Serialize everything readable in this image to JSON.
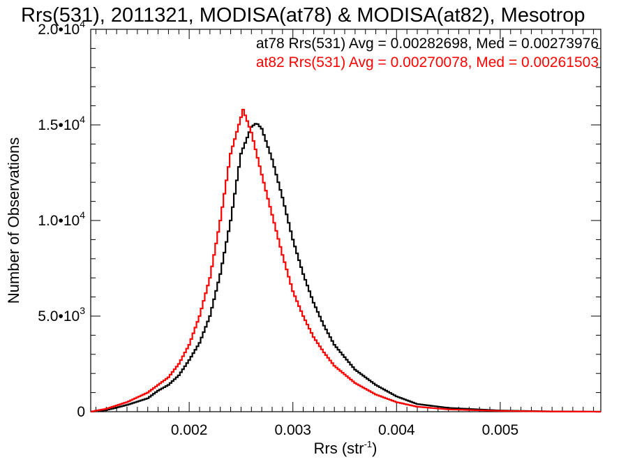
{
  "chart_data": {
    "type": "line",
    "title": "Rrs(531), 2011321, MODISA(at78) & MODISA(at82), Mesotrop",
    "xlabel": "Rrs (str",
    "xlabel_sup": "-1",
    "xlabel_end": ")",
    "ylabel": "Number of Observations",
    "xlim": [
      0.00105,
      0.00597
    ],
    "ylim": [
      0,
      20000
    ],
    "x_ticks": [
      {
        "value": 0.002,
        "label": "0.002"
      },
      {
        "value": 0.003,
        "label": "0.003"
      },
      {
        "value": 0.004,
        "label": "0.004"
      },
      {
        "value": 0.005,
        "label": "0.005"
      }
    ],
    "y_ticks": [
      {
        "value": 0,
        "label": "0",
        "sup": ""
      },
      {
        "value": 5000,
        "label": "5.0•10",
        "sup": "3"
      },
      {
        "value": 10000,
        "label": "1.0•10",
        "sup": "4"
      },
      {
        "value": 15000,
        "label": "1.5•10",
        "sup": "4"
      },
      {
        "value": 20000,
        "label": "2.0•10",
        "sup": "4"
      }
    ],
    "grid": false,
    "legend_position": "top-right",
    "series": [
      {
        "name": "at78",
        "color": "#000000",
        "legend": "at78 Rrs(531) Avg = 0.00282698, Med = 0.00273976",
        "x": [
          0.00105,
          0.0012,
          0.0014,
          0.0016,
          0.0017,
          0.0018,
          0.0019,
          0.002,
          0.0021,
          0.0022,
          0.0023,
          0.0024,
          0.0025,
          0.0026,
          0.00265,
          0.0027,
          0.0028,
          0.0029,
          0.003,
          0.0031,
          0.0032,
          0.0033,
          0.0034,
          0.0036,
          0.0038,
          0.004,
          0.0042,
          0.0045,
          0.005,
          0.0055,
          0.00597
        ],
        "y": [
          0,
          80,
          350,
          700,
          1100,
          1400,
          1900,
          2700,
          3600,
          5000,
          7200,
          10000,
          13500,
          14900,
          15100,
          14800,
          13200,
          11200,
          9000,
          7200,
          5700,
          4500,
          3500,
          2200,
          1400,
          800,
          400,
          200,
          60,
          15,
          0
        ]
      },
      {
        "name": "at82",
        "color": "#ff0000",
        "legend": "at82 Rrs(531) Avg = 0.00270078, Med = 0.00261503",
        "x": [
          0.00105,
          0.0012,
          0.0014,
          0.0016,
          0.0017,
          0.0018,
          0.0019,
          0.002,
          0.0021,
          0.0022,
          0.0023,
          0.0024,
          0.0025,
          0.00252,
          0.0026,
          0.0027,
          0.0028,
          0.0029,
          0.003,
          0.0031,
          0.0032,
          0.0033,
          0.0034,
          0.0036,
          0.0038,
          0.004,
          0.0042,
          0.0045,
          0.005,
          0.0055,
          0.00597
        ],
        "y": [
          0,
          150,
          500,
          1000,
          1400,
          1800,
          2500,
          3500,
          5000,
          7000,
          10000,
          13500,
          15400,
          15800,
          14600,
          12400,
          10300,
          8200,
          6300,
          5000,
          3900,
          3100,
          2400,
          1500,
          900,
          500,
          260,
          120,
          40,
          10,
          0
        ]
      }
    ]
  }
}
